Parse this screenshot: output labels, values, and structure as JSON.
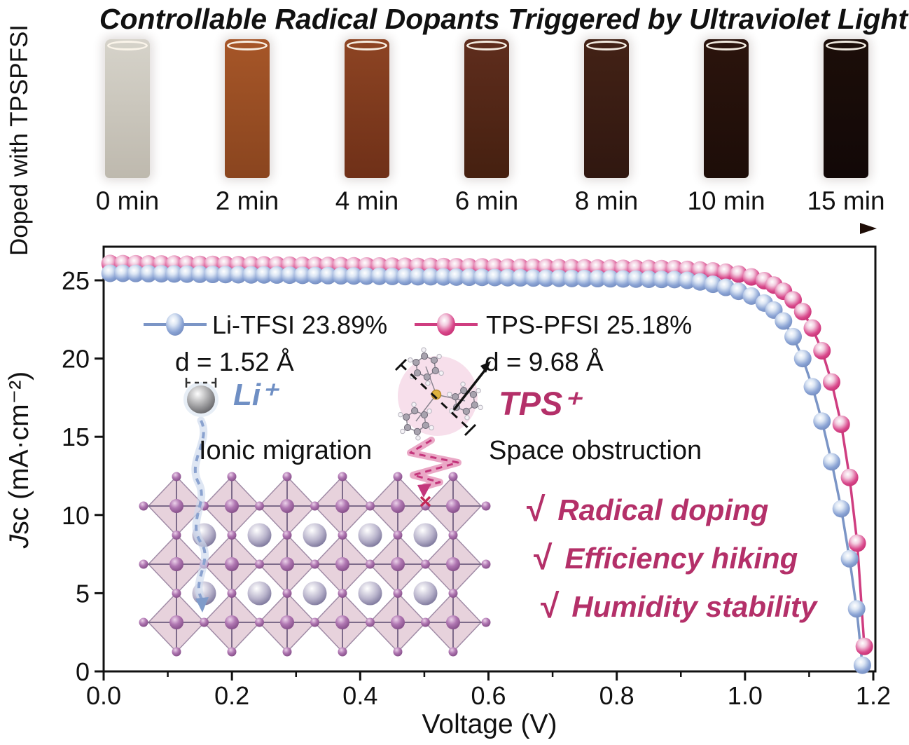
{
  "page": {
    "title": "Controllable Radical Dopants Triggered by Ultraviolet Light",
    "side_label": "Doped with TPSPFSI"
  },
  "vials": [
    {
      "time": "0 min",
      "color_top": "#d6d3ca",
      "color_bottom": "#beb9ae"
    },
    {
      "time": "2 min",
      "color_top": "#a65628",
      "color_bottom": "#8a451f"
    },
    {
      "time": "4 min",
      "color_top": "#8d4423",
      "color_bottom": "#6f3018"
    },
    {
      "time": "6 min",
      "color_top": "#5f2d1d",
      "color_bottom": "#452010"
    },
    {
      "time": "8 min",
      "color_top": "#432216",
      "color_bottom": "#301710"
    },
    {
      "time": "10 min",
      "color_top": "#2b140d",
      "color_bottom": "#1d0d08"
    },
    {
      "time": "15 min",
      "color_top": "#1c0e09",
      "color_bottom": "#120807"
    }
  ],
  "timeline_arrow": {
    "start_color": "#d9d3c9",
    "mid_color": "#7a5743",
    "end_color": "#1e0d07"
  },
  "chart_data": {
    "type": "line",
    "xlabel": "Voltage (V)",
    "ylabel": "Jsc (mA·cm⁻²)",
    "ylabel_italic": "J",
    "ylabel_rest": "sc (mA·cm⁻²)",
    "xlim": [
      0.0,
      1.2
    ],
    "ylim": [
      0,
      27.3
    ],
    "x_ticks": [
      {
        "v": 0.0,
        "label": "0.0"
      },
      {
        "v": 0.2,
        "label": "0.2"
      },
      {
        "v": 0.4,
        "label": "0.4"
      },
      {
        "v": 0.6,
        "label": "0.6"
      },
      {
        "v": 0.8,
        "label": "0.8"
      },
      {
        "v": 1.0,
        "label": "1.0"
      },
      {
        "v": 1.2,
        "label": "1.2"
      }
    ],
    "x_minor_ticks": [
      0.1,
      0.3,
      0.5,
      0.7,
      0.9,
      1.1
    ],
    "y_ticks": [
      {
        "v": 0,
        "label": "0"
      },
      {
        "v": 5,
        "label": "5"
      },
      {
        "v": 10,
        "label": "10"
      },
      {
        "v": 15,
        "label": "15"
      },
      {
        "v": 20,
        "label": "20"
      },
      {
        "v": 25,
        "label": "25"
      }
    ],
    "grid": false,
    "legend_position": "inside top-left",
    "series": [
      {
        "name": "Li-TFSI 23.89%",
        "color": "#7b95c6",
        "marker_color": "#8aa3d4",
        "points": [
          [
            0.01,
            25.45
          ],
          [
            0.03,
            25.45
          ],
          [
            0.05,
            25.44
          ],
          [
            0.07,
            25.43
          ],
          [
            0.09,
            25.42
          ],
          [
            0.11,
            25.41
          ],
          [
            0.13,
            25.4
          ],
          [
            0.15,
            25.39
          ],
          [
            0.17,
            25.38
          ],
          [
            0.19,
            25.37
          ],
          [
            0.21,
            25.36
          ],
          [
            0.23,
            25.35
          ],
          [
            0.25,
            25.35
          ],
          [
            0.27,
            25.34
          ],
          [
            0.29,
            25.33
          ],
          [
            0.31,
            25.32
          ],
          [
            0.33,
            25.31
          ],
          [
            0.35,
            25.3
          ],
          [
            0.37,
            25.29
          ],
          [
            0.39,
            25.28
          ],
          [
            0.41,
            25.27
          ],
          [
            0.43,
            25.26
          ],
          [
            0.45,
            25.25
          ],
          [
            0.47,
            25.24
          ],
          [
            0.49,
            25.23
          ],
          [
            0.51,
            25.23
          ],
          [
            0.53,
            25.22
          ],
          [
            0.55,
            25.21
          ],
          [
            0.57,
            25.2
          ],
          [
            0.59,
            25.19
          ],
          [
            0.61,
            25.18
          ],
          [
            0.63,
            25.17
          ],
          [
            0.65,
            25.16
          ],
          [
            0.67,
            25.15
          ],
          [
            0.69,
            25.14
          ],
          [
            0.71,
            25.13
          ],
          [
            0.73,
            25.12
          ],
          [
            0.75,
            25.12
          ],
          [
            0.77,
            25.11
          ],
          [
            0.79,
            25.1
          ],
          [
            0.81,
            25.09
          ],
          [
            0.83,
            25.08
          ],
          [
            0.85,
            25.07
          ],
          [
            0.87,
            25.06
          ],
          [
            0.89,
            25.05
          ],
          [
            0.91,
            25.0
          ],
          [
            0.93,
            24.9
          ],
          [
            0.95,
            24.75
          ],
          [
            0.97,
            24.55
          ],
          [
            0.99,
            24.3
          ],
          [
            1.01,
            24.0
          ],
          [
            1.03,
            23.55
          ],
          [
            1.045,
            23.1
          ],
          [
            1.06,
            22.4
          ],
          [
            1.075,
            21.4
          ],
          [
            1.09,
            20.0
          ],
          [
            1.105,
            18.2
          ],
          [
            1.12,
            16.0
          ],
          [
            1.135,
            13.4
          ],
          [
            1.15,
            10.4
          ],
          [
            1.163,
            7.2
          ],
          [
            1.174,
            4.0
          ],
          [
            1.183,
            0.4
          ]
        ]
      },
      {
        "name": "TPS-PFSI  25.18%",
        "color": "#cf3d80",
        "marker_color": "#d9498c",
        "points": [
          [
            0.01,
            26.08
          ],
          [
            0.03,
            26.07
          ],
          [
            0.05,
            26.06
          ],
          [
            0.07,
            26.05
          ],
          [
            0.09,
            26.05
          ],
          [
            0.11,
            26.04
          ],
          [
            0.13,
            26.03
          ],
          [
            0.15,
            26.02
          ],
          [
            0.17,
            26.02
          ],
          [
            0.19,
            26.01
          ],
          [
            0.21,
            26.0
          ],
          [
            0.23,
            25.99
          ],
          [
            0.25,
            25.99
          ],
          [
            0.27,
            25.98
          ],
          [
            0.29,
            25.97
          ],
          [
            0.31,
            25.96
          ],
          [
            0.33,
            25.95
          ],
          [
            0.35,
            25.95
          ],
          [
            0.37,
            25.94
          ],
          [
            0.39,
            25.93
          ],
          [
            0.41,
            25.92
          ],
          [
            0.43,
            25.92
          ],
          [
            0.45,
            25.91
          ],
          [
            0.47,
            25.9
          ],
          [
            0.49,
            25.89
          ],
          [
            0.51,
            25.89
          ],
          [
            0.53,
            25.88
          ],
          [
            0.55,
            25.87
          ],
          [
            0.57,
            25.86
          ],
          [
            0.59,
            25.86
          ],
          [
            0.61,
            25.85
          ],
          [
            0.63,
            25.84
          ],
          [
            0.65,
            25.83
          ],
          [
            0.67,
            25.83
          ],
          [
            0.69,
            25.82
          ],
          [
            0.71,
            25.81
          ],
          [
            0.73,
            25.8
          ],
          [
            0.75,
            25.8
          ],
          [
            0.77,
            25.79
          ],
          [
            0.79,
            25.78
          ],
          [
            0.81,
            25.77
          ],
          [
            0.83,
            25.76
          ],
          [
            0.85,
            25.76
          ],
          [
            0.87,
            25.75
          ],
          [
            0.89,
            25.74
          ],
          [
            0.91,
            25.7
          ],
          [
            0.93,
            25.66
          ],
          [
            0.95,
            25.6
          ],
          [
            0.97,
            25.52
          ],
          [
            0.99,
            25.4
          ],
          [
            1.01,
            25.22
          ],
          [
            1.03,
            24.98
          ],
          [
            1.045,
            24.7
          ],
          [
            1.06,
            24.3
          ],
          [
            1.075,
            23.75
          ],
          [
            1.09,
            23.0
          ],
          [
            1.105,
            21.95
          ],
          [
            1.12,
            20.5
          ],
          [
            1.135,
            18.5
          ],
          [
            1.15,
            15.8
          ],
          [
            1.163,
            12.4
          ],
          [
            1.175,
            8.2
          ],
          [
            1.186,
            1.6
          ]
        ]
      }
    ]
  },
  "annotations": {
    "li_distance": "d = 1.52 Å",
    "li_ion": "Li⁺",
    "li_color": "#6f8fc4",
    "tps_distance": "d = 9.68 Å",
    "tps_ion": "TPS⁺",
    "tps_color": "#b43069",
    "ionic_migration": "Ionic migration",
    "space_obstruction": "Space obstruction",
    "benefit_color": "#b43069",
    "benefits": [
      {
        "check": "√",
        "label": "Radical doping"
      },
      {
        "check": "√",
        "label": "Efficiency hiking"
      },
      {
        "check": "√",
        "label": "Humidity stability"
      }
    ]
  }
}
